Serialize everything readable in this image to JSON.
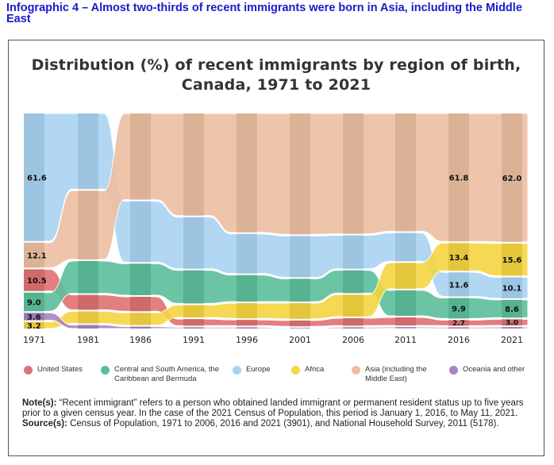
{
  "heading": "Infographic 4 – Almost two-thirds of recent immigrants were born in Asia, including the Middle East",
  "chart_data": {
    "type": "area",
    "subtype": "ranked ribbon (stacked 100%)",
    "title": "Distribution (%) of recent immigrants by region of birth, Canada, 1971 to 2021",
    "categories": [
      "1971",
      "1981",
      "1986",
      "1991",
      "1996",
      "2001",
      "2006",
      "2011",
      "2016",
      "2021"
    ],
    "ylim": [
      0,
      100
    ],
    "series": [
      {
        "key": "us",
        "name": "United States",
        "color": "#e07272",
        "values": [
          10.5,
          7.2,
          7.0,
          3.2,
          2.8,
          2.8,
          3.6,
          3.9,
          2.7,
          3.0
        ]
      },
      {
        "key": "csa",
        "name": "Central and South America, the Caribbean and Bermuda",
        "color": "#5cbf9b",
        "values": [
          9.0,
          15.6,
          15.2,
          16.0,
          12.8,
          11.0,
          11.0,
          12.3,
          9.9,
          8.6
        ]
      },
      {
        "key": "eu",
        "name": "Europe",
        "color": "#a9d3f2",
        "values": [
          61.6,
          36.5,
          29.4,
          24.9,
          19.1,
          19.9,
          16.1,
          13.7,
          11.6,
          10.1
        ]
      },
      {
        "key": "af",
        "name": "Africa",
        "color": "#f5d542",
        "values": [
          3.2,
          5.8,
          5.9,
          6.0,
          7.3,
          7.6,
          10.6,
          12.5,
          13.4,
          15.6
        ]
      },
      {
        "key": "as",
        "name": "Asia (including the Middle East)",
        "color": "#edbfa2",
        "values": [
          12.1,
          33.2,
          41.6,
          49.3,
          57.4,
          58.4,
          58.1,
          56.9,
          61.8,
          62.0
        ]
      },
      {
        "key": "oc",
        "name": "Oceania and other",
        "color": "#a783c4",
        "values": [
          3.6,
          1.7,
          0.9,
          0.6,
          0.6,
          0.3,
          0.6,
          0.6,
          0.6,
          0.7
        ]
      }
    ],
    "data_labels": [
      {
        "year": "1971",
        "series": "eu",
        "text": "61.6"
      },
      {
        "year": "1971",
        "series": "as",
        "text": "12.1"
      },
      {
        "year": "1971",
        "series": "us",
        "text": "10.5"
      },
      {
        "year": "1971",
        "series": "csa",
        "text": "9.0"
      },
      {
        "year": "1971",
        "series": "oc",
        "text": "3.6"
      },
      {
        "year": "1971",
        "series": "af",
        "text": "3.2"
      },
      {
        "year": "2016",
        "series": "as",
        "text": "61.8"
      },
      {
        "year": "2016",
        "series": "af",
        "text": "13.4"
      },
      {
        "year": "2016",
        "series": "eu",
        "text": "11.6"
      },
      {
        "year": "2016",
        "series": "csa",
        "text": "9.9"
      },
      {
        "year": "2016",
        "series": "us",
        "text": "2.7"
      },
      {
        "year": "2021",
        "series": "as",
        "text": "62.0"
      },
      {
        "year": "2021",
        "series": "af",
        "text": "15.6"
      },
      {
        "year": "2021",
        "series": "eu",
        "text": "10.1"
      },
      {
        "year": "2021",
        "series": "csa",
        "text": "8.6"
      },
      {
        "year": "2021",
        "series": "us",
        "text": "3.0"
      }
    ],
    "legend_position": "bottom"
  },
  "legend": [
    {
      "label": "United States",
      "color": "#e07272"
    },
    {
      "label": "Central and South America, the Caribbean and Bermuda",
      "color": "#5cbf9b"
    },
    {
      "label": "Europe",
      "color": "#a9d3f2"
    },
    {
      "label": "Africa",
      "color": "#f5d542"
    },
    {
      "label": "Asia (including the Middle East)",
      "color": "#edbfa2"
    },
    {
      "label": "Oceania and other",
      "color": "#a783c4"
    }
  ],
  "notes": {
    "note_label": "Note(s):",
    "note_text": " “Recent immigrant” refers to a person who obtained landed immigrant or permanent resident status up to five years prior to a given census year. In the case of the 2021 Census of Population, this period is January 1, 2016, to May 11, 2021.",
    "source_label": "Source(s):",
    "source_text": " Census of Population, 1971 to 2006, 2016 and 2021 (3901), and National Household Survey, 2011 (5178)."
  }
}
